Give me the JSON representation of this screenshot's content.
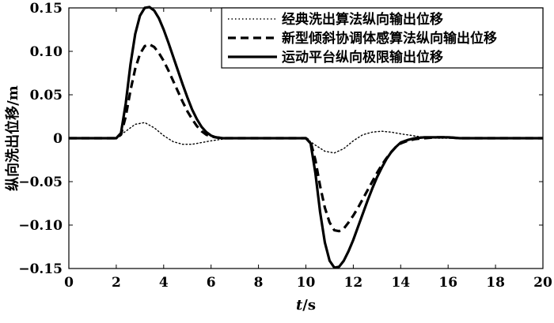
{
  "chart_data": {
    "type": "line",
    "title": "",
    "xlabel": {
      "italic": "t",
      "rest": "/s"
    },
    "ylabel": "纵向洗出位移/m",
    "xlim": [
      0,
      20
    ],
    "ylim": [
      -0.15,
      0.15
    ],
    "x_ticks": [
      0,
      2,
      4,
      6,
      8,
      10,
      12,
      14,
      16,
      18,
      20
    ],
    "x_tick_labels": [
      "0",
      "2",
      "4",
      "6",
      "8",
      "10",
      "12",
      "14",
      "16",
      "18",
      "20"
    ],
    "y_ticks": [
      0.15,
      0.1,
      0.05,
      0,
      -0.05,
      -0.1,
      -0.15
    ],
    "y_tick_labels": [
      "0.15",
      "0.10",
      "0.05",
      "0",
      "−0.05",
      "−0.10",
      "−0.15"
    ],
    "grid": false,
    "legend_position": "top-right",
    "series": [
      {
        "name": "经典洗出算法纵向输出位移",
        "style": "dotted",
        "color": "#000000",
        "x": [
          0,
          2.0,
          2.4,
          2.8,
          3.2,
          3.6,
          4.0,
          4.4,
          4.8,
          5.2,
          5.6,
          6.0,
          6.5,
          7.0,
          7.5,
          8.0,
          9.0,
          10.0,
          10.4,
          10.8,
          11.2,
          11.6,
          12.0,
          12.4,
          12.8,
          13.2,
          13.6,
          14.0,
          14.5,
          15.0,
          15.5,
          16.0,
          17.0,
          18.0,
          19.0,
          20.0
        ],
        "y": [
          0,
          0,
          0.008,
          0.016,
          0.018,
          0.012,
          0.003,
          -0.004,
          -0.007,
          -0.007,
          -0.005,
          -0.003,
          -0.001,
          0,
          0,
          0,
          0,
          0,
          -0.008,
          -0.015,
          -0.017,
          -0.012,
          -0.003,
          0.004,
          0.007,
          0.008,
          0.007,
          0.005,
          0.003,
          0.001,
          0,
          0,
          0,
          0,
          0,
          0
        ]
      },
      {
        "name": "新型倾斜协调体感算法纵向输出位移",
        "style": "dashed",
        "color": "#000000",
        "x": [
          0,
          2.0,
          2.2,
          2.4,
          2.6,
          2.8,
          3.0,
          3.2,
          3.4,
          3.6,
          3.8,
          4.0,
          4.2,
          4.4,
          4.6,
          4.8,
          5.0,
          5.2,
          5.4,
          5.6,
          5.8,
          6.0,
          6.2,
          6.5,
          7.0,
          7.5,
          8.0,
          9.0,
          10.0,
          10.2,
          10.4,
          10.6,
          10.8,
          11.0,
          11.2,
          11.4,
          11.6,
          11.8,
          12.0,
          12.2,
          12.4,
          12.6,
          12.8,
          13.0,
          13.2,
          13.4,
          13.6,
          13.8,
          14.0,
          14.3,
          14.6,
          15.0,
          15.5,
          16.0,
          16.5,
          17.0,
          18.0,
          19.0,
          20.0
        ],
        "y": [
          0,
          0,
          0.004,
          0.025,
          0.055,
          0.08,
          0.097,
          0.106,
          0.108,
          0.105,
          0.098,
          0.089,
          0.078,
          0.066,
          0.054,
          0.042,
          0.031,
          0.022,
          0.014,
          0.008,
          0.004,
          0.002,
          0.001,
          0,
          0,
          0,
          0,
          0,
          0,
          -0.004,
          -0.025,
          -0.055,
          -0.08,
          -0.097,
          -0.106,
          -0.107,
          -0.104,
          -0.097,
          -0.089,
          -0.08,
          -0.07,
          -0.06,
          -0.05,
          -0.04,
          -0.031,
          -0.023,
          -0.016,
          -0.01,
          -0.006,
          -0.003,
          -0.001,
          0,
          0.001,
          0.001,
          0,
          0,
          0,
          0,
          0
        ]
      },
      {
        "name": "运动平台纵向极限输出位移",
        "style": "solid",
        "color": "#000000",
        "x": [
          0,
          2.0,
          2.2,
          2.4,
          2.6,
          2.8,
          3.0,
          3.2,
          3.4,
          3.6,
          3.8,
          4.0,
          4.2,
          4.4,
          4.6,
          4.8,
          5.0,
          5.2,
          5.4,
          5.6,
          5.8,
          6.0,
          6.2,
          6.5,
          7.0,
          7.5,
          8.0,
          9.0,
          10.0,
          10.2,
          10.4,
          10.6,
          10.8,
          11.0,
          11.2,
          11.4,
          11.6,
          11.8,
          12.0,
          12.2,
          12.4,
          12.6,
          12.8,
          13.0,
          13.2,
          13.4,
          13.6,
          13.8,
          14.0,
          14.3,
          14.6,
          15.0,
          15.5,
          16.0,
          16.5,
          17.0,
          18.0,
          19.0,
          20.0
        ],
        "y": [
          0,
          0,
          0.006,
          0.04,
          0.085,
          0.12,
          0.141,
          0.15,
          0.151,
          0.147,
          0.138,
          0.125,
          0.11,
          0.094,
          0.078,
          0.062,
          0.047,
          0.033,
          0.022,
          0.013,
          0.007,
          0.003,
          0.001,
          0,
          0,
          0,
          0,
          0,
          0,
          -0.006,
          -0.04,
          -0.085,
          -0.12,
          -0.141,
          -0.149,
          -0.148,
          -0.141,
          -0.13,
          -0.117,
          -0.102,
          -0.087,
          -0.072,
          -0.058,
          -0.045,
          -0.034,
          -0.024,
          -0.016,
          -0.01,
          -0.005,
          -0.002,
          0,
          0.001,
          0.001,
          0.001,
          0,
          0,
          0,
          0,
          0
        ]
      }
    ]
  }
}
